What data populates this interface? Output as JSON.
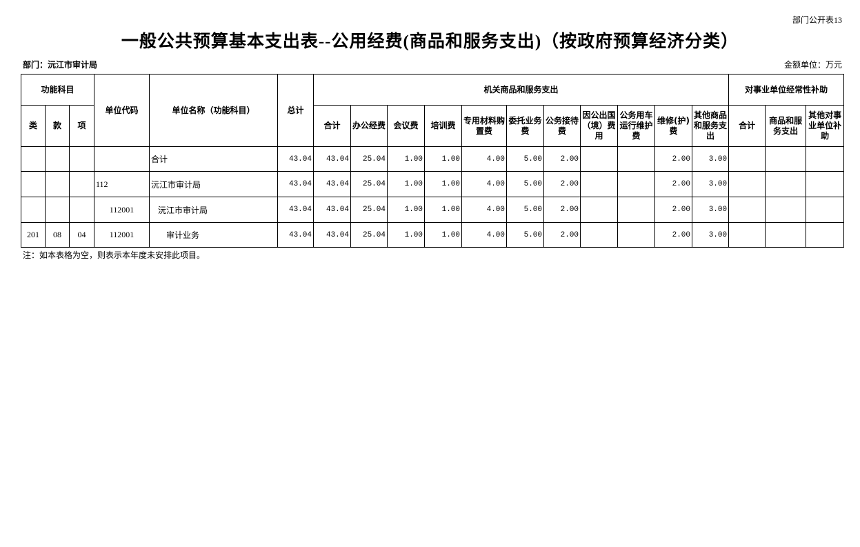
{
  "page_code": "部门公开表13",
  "title": "一般公共预算基本支出表--公用经费(商品和服务支出)（按政府预算经济分类）",
  "department": "部门：沅江市审计局",
  "amount_unit": "金额单位：万元",
  "header": {
    "functional_subject": "功能科目",
    "lei": "类",
    "kuan": "款",
    "xiang": "项",
    "unit_code": "单位代码",
    "unit_name": "单位名称（功能科目）",
    "total": "总计",
    "group_goods": "机关商品和服务支出",
    "group_subsidy": "对事业单位经常性补助",
    "goods_cols": [
      "合计",
      "办公经费",
      "会议费",
      "培训费",
      "专用材料购置费",
      "委托业务费",
      "公务接待费",
      "因公出国（境）费用",
      "公务用车运行维护费",
      "维修(护)费",
      "其他商品和服务支出"
    ],
    "subsidy_cols": [
      "合计",
      "商品和服务支出",
      "其他对事业单位补助"
    ]
  },
  "rows": [
    {
      "lei": "",
      "kuan": "",
      "xiang": "",
      "code": "",
      "name": "合计",
      "values": [
        "43.04",
        "43.04",
        "25.04",
        "1.00",
        "1.00",
        "4.00",
        "5.00",
        "2.00",
        "",
        "",
        "2.00",
        "3.00",
        "",
        "",
        ""
      ]
    },
    {
      "lei": "",
      "kuan": "",
      "xiang": "",
      "code": "112",
      "name": "沅江市审计局",
      "values": [
        "43.04",
        "43.04",
        "25.04",
        "1.00",
        "1.00",
        "4.00",
        "5.00",
        "2.00",
        "",
        "",
        "2.00",
        "3.00",
        "",
        "",
        ""
      ]
    },
    {
      "lei": "",
      "kuan": "",
      "xiang": "",
      "code": "112001",
      "name": "沅江市审计局",
      "values": [
        "43.04",
        "43.04",
        "25.04",
        "1.00",
        "1.00",
        "4.00",
        "5.00",
        "2.00",
        "",
        "",
        "2.00",
        "3.00",
        "",
        "",
        ""
      ]
    },
    {
      "lei": "201",
      "kuan": "08",
      "xiang": "04",
      "code": "112001",
      "name": "审计业务",
      "values": [
        "43.04",
        "43.04",
        "25.04",
        "1.00",
        "1.00",
        "4.00",
        "5.00",
        "2.00",
        "",
        "",
        "2.00",
        "3.00",
        "",
        "",
        ""
      ]
    }
  ],
  "note": "注：如本表格为空，则表示本年度未安排此项目。"
}
